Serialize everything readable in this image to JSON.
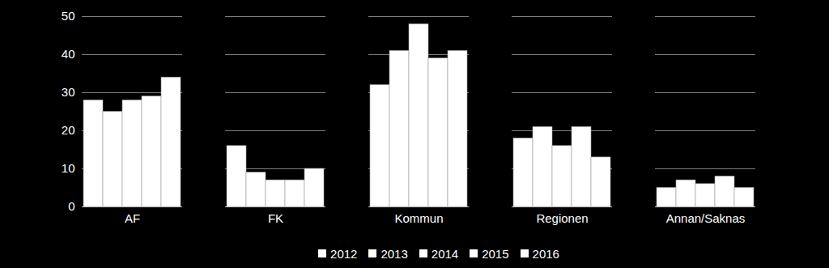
{
  "chart_data": {
    "type": "bar",
    "categories": [
      "AF",
      "FK",
      "Kommun",
      "Regionen",
      "Annan/Saknas"
    ],
    "series": [
      {
        "name": "2012",
        "color": "#ffffff",
        "values": [
          28,
          16,
          32,
          18,
          5
        ]
      },
      {
        "name": "2013",
        "color": "#ffffff",
        "values": [
          25,
          9,
          41,
          21,
          7
        ]
      },
      {
        "name": "2014",
        "color": "#ffffff",
        "values": [
          28,
          7,
          48,
          16,
          6
        ]
      },
      {
        "name": "2015",
        "color": "#ffffff",
        "values": [
          29,
          7,
          39,
          21,
          8
        ]
      },
      {
        "name": "2016",
        "color": "#ffffff",
        "values": [
          34,
          10,
          41,
          13,
          5
        ]
      }
    ],
    "ylim": [
      0,
      50
    ],
    "yticks": [
      0,
      10,
      20,
      30,
      40,
      50
    ],
    "grid": true,
    "legend": "bottom"
  }
}
